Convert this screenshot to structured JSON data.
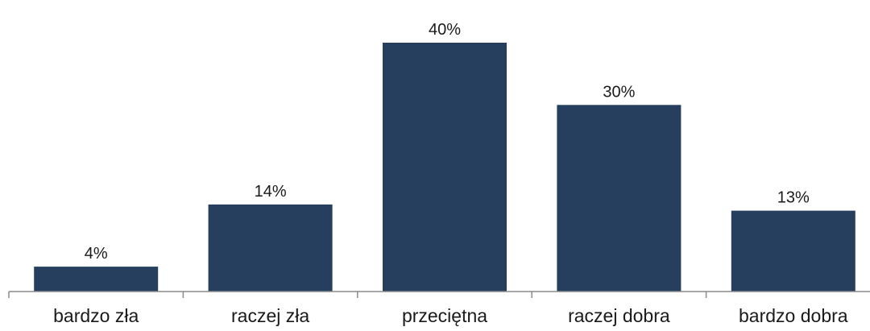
{
  "chart_data": {
    "type": "bar",
    "title": "",
    "xlabel": "",
    "ylabel": "",
    "categories": [
      "bardzo zła",
      "raczej zła",
      "przeciętna",
      "raczej dobra",
      "bardzo dobra"
    ],
    "values": [
      4,
      14,
      40,
      30,
      13
    ],
    "value_labels": [
      "4%",
      "14%",
      "40%",
      "30%",
      "13%"
    ],
    "ylim": [
      0,
      40
    ],
    "grid": false,
    "legend": "none",
    "colors": {
      "bar": "#263f5f",
      "axis": "#8c8c8c",
      "text": "#1a1a1a"
    }
  }
}
